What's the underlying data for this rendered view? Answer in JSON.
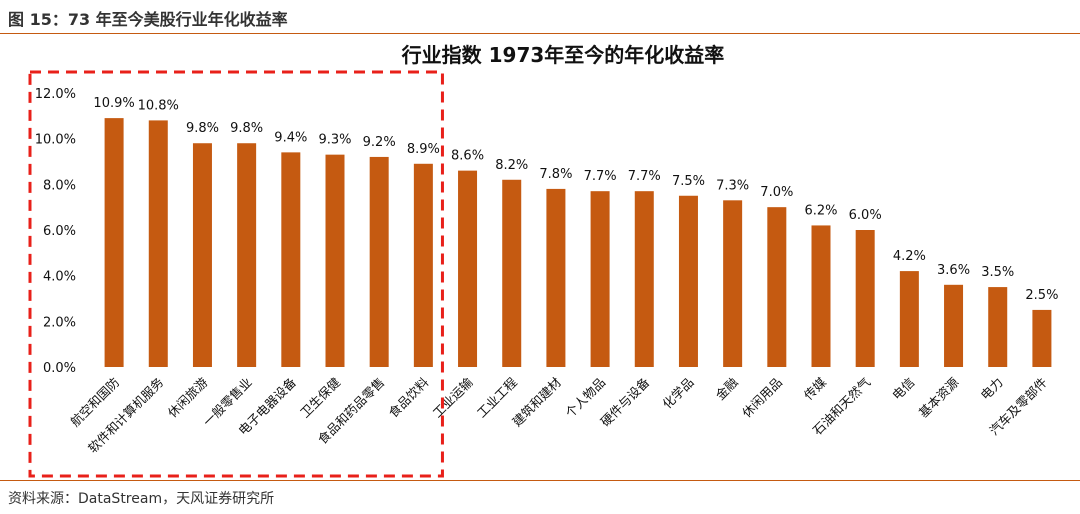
{
  "caption": "图 15：73 年至今美股行业年化收益率",
  "source": "资料来源：DataStream，天风证券研究所",
  "colors": {
    "bar": "#c55a11",
    "rule": "#c55a11",
    "highlight_box": "#e8201a"
  },
  "chart_data": {
    "type": "bar",
    "title": "行业指数 1973年至今的年化收益率",
    "categories": [
      "航空和国防",
      "软件和计算机服务",
      "休闲旅游",
      "一般零售业",
      "电子电器设备",
      "卫生保健",
      "食品和药品零售",
      "食品饮料",
      "工业运输",
      "工业工程",
      "建筑和建材",
      "个人物品",
      "硬件与设备",
      "化学品",
      "金融",
      "休闲用品",
      "传媒",
      "石油和天然气",
      "电信",
      "基本资源",
      "电力",
      "汽车及零部件"
    ],
    "values": [
      10.9,
      10.8,
      9.8,
      9.8,
      9.4,
      9.3,
      9.2,
      8.9,
      8.6,
      8.2,
      7.8,
      7.7,
      7.7,
      7.5,
      7.3,
      7.0,
      6.2,
      6.0,
      4.2,
      3.6,
      3.5,
      2.5
    ],
    "value_labels": [
      "10.9%",
      "10.8%",
      "9.8%",
      "9.8%",
      "9.4%",
      "9.3%",
      "9.2%",
      "8.9%",
      "8.6%",
      "8.2%",
      "7.8%",
      "7.7%",
      "7.7%",
      "7.5%",
      "7.3%",
      "7.0%",
      "6.2%",
      "6.0%",
      "4.2%",
      "3.6%",
      "3.5%",
      "2.5%"
    ],
    "y_ticks": [
      "0.0%",
      "2.0%",
      "4.0%",
      "6.0%",
      "8.0%",
      "10.0%",
      "12.0%"
    ],
    "ylim": [
      0,
      12
    ],
    "grid": false,
    "legend": "none",
    "highlighted_categories": 8
  }
}
